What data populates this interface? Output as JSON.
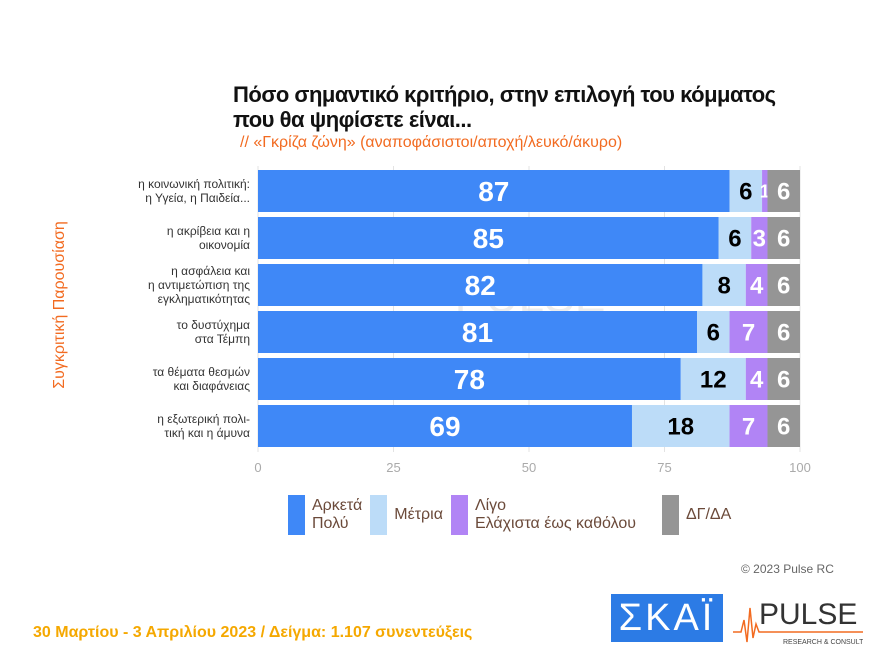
{
  "title_line1": "Πόσο σημαντικό κριτήριο, στην επιλογή του κόμματος",
  "title_line2": "που θα ψηφίσετε είναι...",
  "subtitle": "// «Γκρίζα ζώνη» (αναποφάσιστοι/αποχή/λευκό/άκυρο)",
  "side_label": "Συγκριτική Παρουσίαση",
  "copyright": "© 2023 Pulse RC",
  "footer": "30 Μαρτίου - 3  Απριλίου  2023  /  Δείγμα:  1.107 συνεντεύξεις",
  "logos": {
    "skai": "ΣΚΑΪ",
    "pulse": "PULSE",
    "pulse_sub": "RESEARCH & CONSULTING"
  },
  "watermark": "PULSE",
  "chart_data": {
    "type": "bar",
    "orientation": "horizontal",
    "stacked": true,
    "categories": [
      [
        "η κοινωνική πολιτική:",
        "η Υγεία, η Παιδεία..."
      ],
      [
        "η ακρίβεια και η",
        "οικονομία"
      ],
      [
        "η ασφάλεια και",
        "η αντιμετώπιση της",
        "εγκληματικότητας"
      ],
      [
        "το δυστύχημα",
        "στα Τέμπη"
      ],
      [
        "τα θέματα θεσμών",
        "και διαφάνειας"
      ],
      [
        "η εξωτερική πολι-",
        "τική και η άμυνα"
      ]
    ],
    "series": [
      {
        "name": "Αρκετά Πολύ",
        "legend": [
          "Αρκετά",
          "Πολύ"
        ],
        "color": "#3f88f7",
        "label_color": "#ffffff",
        "values": [
          87,
          85,
          82,
          81,
          78,
          69
        ]
      },
      {
        "name": "Μέτρια",
        "legend": [
          "Μέτρια"
        ],
        "color": "#bcdcf8",
        "label_color": "#000000",
        "values": [
          6,
          6,
          8,
          6,
          12,
          18
        ]
      },
      {
        "name": "Λίγο Ελάχιστα έως καθόλου",
        "legend": [
          "Λίγο",
          "Ελάχιστα έως καθόλου"
        ],
        "color": "#b184f5",
        "label_color": "#ffffff",
        "values": [
          1,
          3,
          4,
          7,
          4,
          7
        ]
      },
      {
        "name": "ΔΓ/ΔΑ",
        "legend": [
          "ΔΓ/ΔΑ"
        ],
        "color": "#959595",
        "label_color": "#ffffff",
        "values": [
          6,
          6,
          6,
          6,
          6,
          6
        ]
      }
    ],
    "xlim": [
      0,
      100
    ],
    "xticks": [
      0,
      25,
      50,
      75,
      100
    ],
    "grid": true,
    "legend_position": "bottom"
  }
}
